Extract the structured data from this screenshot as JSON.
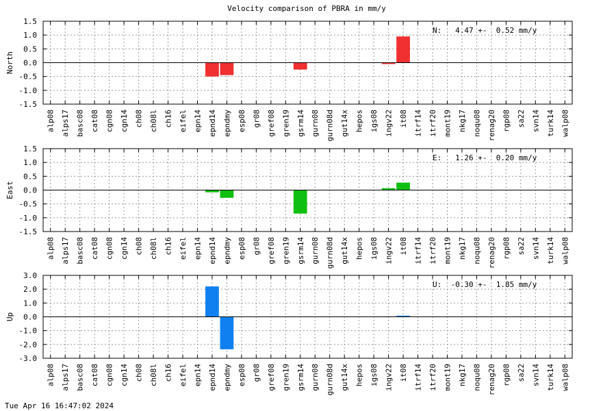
{
  "title": "Velocity comparison of PBRA in mm/y",
  "footer_timestamp": "Tue Apr 16 16:47:02 2024",
  "chart_data": [
    {
      "type": "bar",
      "ylabel": "North",
      "ylim": [
        -1.5,
        1.5
      ],
      "yticks": [
        "-1.5",
        "-1.0",
        "-0.5",
        "0.0",
        "0.5",
        "1.0",
        "1.5"
      ],
      "ytick_values": [
        -1.5,
        -1.0,
        -0.5,
        0.0,
        0.5,
        1.0,
        1.5
      ],
      "annotation": "N:   4.47 +-  0.52 mm/y",
      "color": "#f03030",
      "grid": true,
      "categories": [
        "alp08",
        "alps17",
        "basc08",
        "cat08",
        "cgn08",
        "cgn14",
        "ch08",
        "ch08l",
        "ch16",
        "eifel",
        "epn14",
        "epnd14",
        "epndmy",
        "esp08",
        "gr08",
        "gref08",
        "gren19",
        "gsrm14",
        "gurn08",
        "gurn08d",
        "gut14x",
        "hepos",
        "igs08",
        "ingv22",
        "it08",
        "itrf14",
        "itrf20",
        "mont19",
        "nkg17",
        "noqu08",
        "renag20",
        "rgp08",
        "sa22",
        "svn14",
        "turk14",
        "walp08"
      ],
      "values": [
        0,
        0,
        0,
        0,
        0,
        0,
        0,
        0,
        0,
        0,
        0,
        -0.5,
        -0.45,
        0,
        0,
        0,
        0,
        -0.25,
        0,
        0,
        0,
        0,
        0,
        -0.05,
        0.95,
        0,
        0,
        0,
        0,
        0,
        0,
        0,
        0,
        0,
        0,
        0
      ]
    },
    {
      "type": "bar",
      "ylabel": "East",
      "ylim": [
        -1.5,
        1.5
      ],
      "yticks": [
        "-1.5",
        "-1.0",
        "-0.5",
        "0.0",
        "0.5",
        "1.0",
        "1.5"
      ],
      "ytick_values": [
        -1.5,
        -1.0,
        -0.5,
        0.0,
        0.5,
        1.0,
        1.5
      ],
      "annotation": "E:   1.26 +-  0.20 mm/y",
      "color": "#10c010",
      "grid": true,
      "categories": [
        "alp08",
        "alps17",
        "basc08",
        "cat08",
        "cgn08",
        "cgn14",
        "ch08",
        "ch08l",
        "ch16",
        "eifel",
        "epn14",
        "epnd14",
        "epndmy",
        "esp08",
        "gr08",
        "gref08",
        "gren19",
        "gsrm14",
        "gurn08",
        "gurn08d",
        "gut14x",
        "hepos",
        "igs08",
        "ingv22",
        "it08",
        "itrf14",
        "itrf20",
        "mont19",
        "nkg17",
        "noqu08",
        "renag20",
        "rgp08",
        "sa22",
        "svn14",
        "turk14",
        "walp08"
      ],
      "values": [
        0,
        0,
        0,
        0,
        0,
        0,
        0,
        0,
        0,
        0,
        0,
        -0.08,
        -0.28,
        0,
        0,
        0,
        0,
        -0.85,
        0,
        0,
        0,
        0,
        0,
        0.07,
        0.27,
        0,
        0,
        0,
        0,
        0,
        0,
        0,
        0,
        0,
        0,
        0
      ]
    },
    {
      "type": "bar",
      "ylabel": "Up",
      "ylim": [
        -3.0,
        3.0
      ],
      "yticks": [
        "-3.0",
        "-2.0",
        "-1.0",
        "0.0",
        "1.0",
        "2.0",
        "3.0"
      ],
      "ytick_values": [
        -3.0,
        -2.0,
        -1.0,
        0.0,
        1.0,
        2.0,
        3.0
      ],
      "annotation": "U:  -0.30 +-  1.85 mm/y",
      "color": "#1080f0",
      "grid": true,
      "categories": [
        "alp08",
        "alps17",
        "basc08",
        "cat08",
        "cgn08",
        "cgn14",
        "ch08",
        "ch08l",
        "ch16",
        "eifel",
        "epn14",
        "epnd14",
        "epndmy",
        "esp08",
        "gr08",
        "gref08",
        "gren19",
        "gsrm14",
        "gurn08",
        "gurn08d",
        "gut14x",
        "hepos",
        "igs08",
        "ingv22",
        "it08",
        "itrf14",
        "itrf20",
        "mont19",
        "nkg17",
        "noqu08",
        "renag20",
        "rgp08",
        "sa22",
        "svn14",
        "turk14",
        "walp08"
      ],
      "values": [
        0,
        0,
        0,
        0,
        0,
        0,
        0,
        0,
        0,
        0,
        0,
        2.2,
        -2.35,
        0,
        0,
        0,
        0,
        0,
        0,
        0,
        0,
        0,
        0,
        0.03,
        0.08,
        0,
        0,
        0,
        0,
        0,
        0,
        0,
        0,
        0,
        0,
        0
      ]
    }
  ]
}
